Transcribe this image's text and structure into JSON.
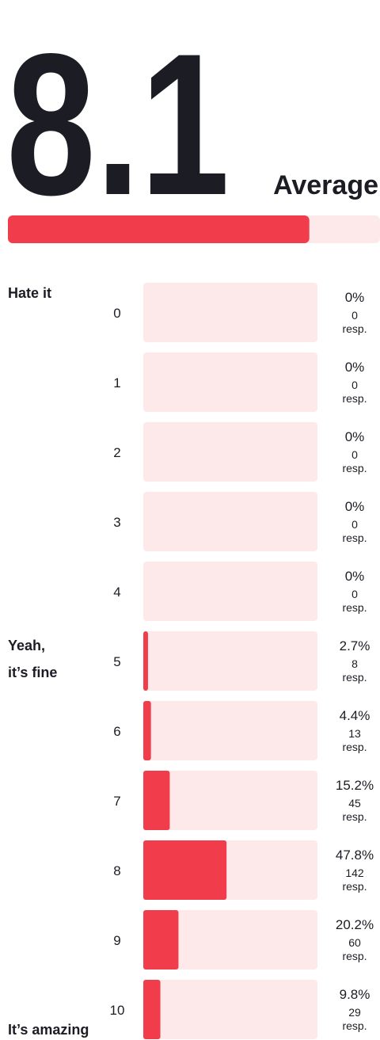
{
  "chart_data": {
    "type": "bar",
    "average": {
      "value": 8.1,
      "label": "8.1"
    },
    "average_title": "Average",
    "average_xlim": [
      0,
      10
    ],
    "categories": [
      "0",
      "1",
      "2",
      "3",
      "4",
      "5",
      "6",
      "7",
      "8",
      "9",
      "10"
    ],
    "values": [
      0,
      0,
      0,
      0,
      0,
      2.7,
      4.4,
      15.2,
      47.8,
      20.2,
      9.8
    ],
    "value_labels": [
      "0%",
      "0%",
      "0%",
      "0%",
      "0%",
      "2.7%",
      "4.4%",
      "15.2%",
      "47.8%",
      "20.2%",
      "9.8%"
    ],
    "responses": [
      0,
      0,
      0,
      0,
      0,
      8,
      13,
      45,
      142,
      60,
      29
    ],
    "responses_unit": "resp.",
    "side_labels": [
      [
        "Hate it"
      ],
      null,
      null,
      null,
      null,
      [
        "Yeah,",
        "it’s fine"
      ],
      null,
      null,
      null,
      null,
      [
        "It’s amazing"
      ]
    ],
    "xlim": [
      0,
      100
    ],
    "color": "#f03c4b",
    "track_color": "#fde9ea"
  }
}
